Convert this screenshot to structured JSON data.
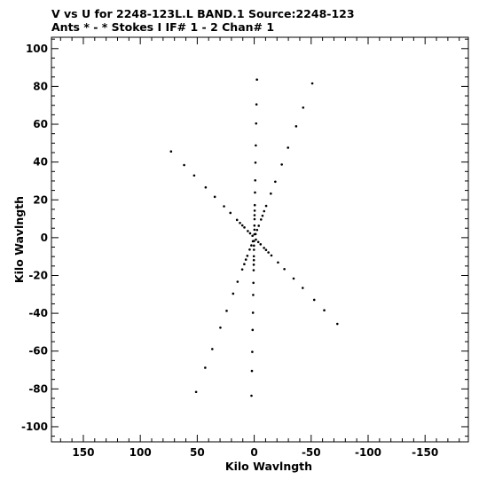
{
  "header": {
    "line1": "V vs U for 2248-123L.L BAND.1   Source:2248-123",
    "line2": "Ants * - *     Stokes I  IF# 1 - 2  Chan# 1"
  },
  "chart_data": {
    "type": "scatter",
    "title": "V vs U for 2248-123L.L BAND.1   Source:2248-123",
    "subtitle": "Ants * - *     Stokes I  IF# 1 - 2  Chan# 1",
    "xlabel": "Kilo Wavlngth",
    "ylabel": "Kilo Wavlngth",
    "xlim": [
      178,
      -188
    ],
    "ylim": [
      -108,
      106
    ],
    "x_reversed": true,
    "grid": false,
    "x_ticks": [
      150,
      100,
      50,
      0,
      -50,
      -100,
      -150
    ],
    "x_tick_labels": [
      "150",
      "100",
      "50",
      "0",
      "-50",
      "-100",
      "-150"
    ],
    "y_ticks": [
      -100,
      -80,
      -60,
      -40,
      -20,
      0,
      20,
      40,
      60,
      80,
      100
    ],
    "y_tick_labels": [
      "-100",
      "-80",
      "-60",
      "-40",
      "-20",
      "0",
      "20",
      "40",
      "60",
      "80",
      "100"
    ],
    "marker_color": "#000000",
    "series": [
      {
        "arm_directions_deg": [
          32,
          92,
          152
        ],
        "points": [
          [
            -1.2,
            1.9
          ],
          [
            1.2,
            -1.9
          ],
          [
            1.5,
            1.0
          ],
          [
            -1.5,
            -1.0
          ],
          [
            0.2,
            -1.8
          ],
          [
            -0.2,
            1.8
          ],
          [
            -2.5,
            4.1
          ],
          [
            2.5,
            -4.1
          ],
          [
            3.6,
            2.3
          ],
          [
            -3.6,
            -2.3
          ],
          [
            0.2,
            -4.2
          ],
          [
            -0.2,
            4.2
          ],
          [
            -4.0,
            6.3
          ],
          [
            4.0,
            -6.3
          ],
          [
            5.6,
            3.5
          ],
          [
            -5.6,
            -3.5
          ],
          [
            0.2,
            -6.4
          ],
          [
            -0.2,
            6.4
          ],
          [
            -6.0,
            9.6
          ],
          [
            6.0,
            -9.6
          ],
          [
            8.6,
            5.4
          ],
          [
            -8.6,
            -5.4
          ],
          [
            0.3,
            -9.8
          ],
          [
            -0.3,
            9.8
          ],
          [
            -7.3,
            11.6
          ],
          [
            7.3,
            -11.6
          ],
          [
            10.4,
            6.5
          ],
          [
            -10.4,
            -6.5
          ],
          [
            0.3,
            -11.9
          ],
          [
            -0.3,
            11.9
          ],
          [
            -8.7,
            14.0
          ],
          [
            8.7,
            -14.0
          ],
          [
            12.5,
            7.8
          ],
          [
            -12.5,
            -7.8
          ],
          [
            0.4,
            -14.3
          ],
          [
            -0.4,
            14.3
          ],
          [
            -10.5,
            16.8
          ],
          [
            10.5,
            -16.8
          ],
          [
            15.1,
            9.4
          ],
          [
            -15.1,
            -9.4
          ],
          [
            0.5,
            -17.2
          ],
          [
            -0.5,
            17.2
          ],
          [
            -14.6,
            23.3
          ],
          [
            14.6,
            -23.3
          ],
          [
            20.9,
            13.1
          ],
          [
            -20.9,
            -13.1
          ],
          [
            0.7,
            -23.9
          ],
          [
            -0.7,
            23.9
          ],
          [
            -18.5,
            29.6
          ],
          [
            18.5,
            -29.6
          ],
          [
            26.5,
            16.6
          ],
          [
            -26.5,
            -16.6
          ],
          [
            0.9,
            -30.3
          ],
          [
            -0.9,
            30.3
          ],
          [
            -24.2,
            38.7
          ],
          [
            24.2,
            -38.7
          ],
          [
            34.6,
            21.6
          ],
          [
            -34.6,
            -21.6
          ],
          [
            1.1,
            -39.7
          ],
          [
            -1.1,
            39.7
          ],
          [
            -29.7,
            47.6
          ],
          [
            29.7,
            -47.6
          ],
          [
            42.6,
            26.6
          ],
          [
            -42.6,
            -26.6
          ],
          [
            1.4,
            -48.8
          ],
          [
            -1.4,
            48.8
          ],
          [
            -36.8,
            58.9
          ],
          [
            36.8,
            -58.9
          ],
          [
            52.7,
            32.9
          ],
          [
            -52.7,
            -32.9
          ],
          [
            1.7,
            -60.4
          ],
          [
            -1.7,
            60.4
          ],
          [
            -43.0,
            68.8
          ],
          [
            43.0,
            -68.8
          ],
          [
            61.5,
            38.4
          ],
          [
            -61.5,
            -38.4
          ],
          [
            2.0,
            -70.5
          ],
          [
            -2.0,
            70.5
          ],
          [
            -51.0,
            81.6
          ],
          [
            51.0,
            -81.6
          ],
          [
            73.0,
            45.6
          ],
          [
            -73.0,
            -45.6
          ],
          [
            2.4,
            -83.6
          ],
          [
            -2.4,
            83.6
          ]
        ]
      }
    ]
  }
}
